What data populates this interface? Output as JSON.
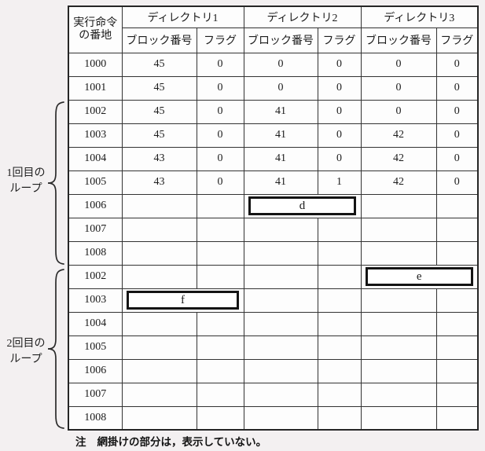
{
  "colors": {
    "paper": "#f3f0f1",
    "shaded_cell": "#d8dcd6",
    "grid_line": "#333333"
  },
  "table": {
    "header": {
      "addr_line1": "実行命令",
      "addr_line2": "の番地",
      "dirs": [
        "ディレクトリ1",
        "ディレクトリ2",
        "ディレクトリ3"
      ],
      "block_label": "ブロック番号",
      "flag_label": "フラグ"
    },
    "rows": [
      {
        "addr": "1000",
        "cells": [
          {
            "t": "v",
            "v": "45"
          },
          {
            "t": "v",
            "v": "0"
          },
          {
            "t": "v",
            "v": "0"
          },
          {
            "t": "v",
            "v": "0"
          },
          {
            "t": "v",
            "v": "0"
          },
          {
            "t": "v",
            "v": "0"
          }
        ]
      },
      {
        "addr": "1001",
        "cells": [
          {
            "t": "v",
            "v": "45"
          },
          {
            "t": "v",
            "v": "0"
          },
          {
            "t": "v",
            "v": "0"
          },
          {
            "t": "v",
            "v": "0"
          },
          {
            "t": "v",
            "v": "0"
          },
          {
            "t": "v",
            "v": "0"
          }
        ]
      },
      {
        "addr": "1002",
        "cells": [
          {
            "t": "v",
            "v": "45"
          },
          {
            "t": "v",
            "v": "0"
          },
          {
            "t": "v",
            "v": "41"
          },
          {
            "t": "v",
            "v": "0"
          },
          {
            "t": "v",
            "v": "0"
          },
          {
            "t": "v",
            "v": "0"
          }
        ]
      },
      {
        "addr": "1003",
        "cells": [
          {
            "t": "v",
            "v": "45"
          },
          {
            "t": "v",
            "v": "0"
          },
          {
            "t": "v",
            "v": "41"
          },
          {
            "t": "v",
            "v": "0"
          },
          {
            "t": "v",
            "v": "42"
          },
          {
            "t": "v",
            "v": "0"
          }
        ]
      },
      {
        "addr": "1004",
        "cells": [
          {
            "t": "v",
            "v": "43"
          },
          {
            "t": "v",
            "v": "0"
          },
          {
            "t": "v",
            "v": "41"
          },
          {
            "t": "v",
            "v": "0"
          },
          {
            "t": "v",
            "v": "42"
          },
          {
            "t": "v",
            "v": "0"
          }
        ]
      },
      {
        "addr": "1005",
        "cells": [
          {
            "t": "v",
            "v": "43"
          },
          {
            "t": "v",
            "v": "0"
          },
          {
            "t": "v",
            "v": "41"
          },
          {
            "t": "v",
            "v": "1"
          },
          {
            "t": "v",
            "v": "42"
          },
          {
            "t": "v",
            "v": "0"
          }
        ]
      },
      {
        "addr": "1006",
        "cells": [
          {
            "t": "s"
          },
          {
            "t": "s"
          },
          {
            "t": "b",
            "label": "d"
          },
          {
            "t": "s"
          },
          {
            "t": "s"
          }
        ]
      },
      {
        "addr": "1007",
        "cells": [
          {
            "t": "s"
          },
          {
            "t": "s"
          },
          {
            "t": "s"
          },
          {
            "t": "s"
          },
          {
            "t": "s"
          },
          {
            "t": "s"
          }
        ]
      },
      {
        "addr": "1008",
        "cells": [
          {
            "t": "s"
          },
          {
            "t": "s"
          },
          {
            "t": "s"
          },
          {
            "t": "s"
          },
          {
            "t": "s"
          },
          {
            "t": "s"
          }
        ]
      },
      {
        "addr": "1002",
        "cells": [
          {
            "t": "s"
          },
          {
            "t": "s"
          },
          {
            "t": "s"
          },
          {
            "t": "s"
          },
          {
            "t": "b",
            "label": "e"
          }
        ]
      },
      {
        "addr": "1003",
        "cells": [
          {
            "t": "b",
            "label": "f"
          },
          {
            "t": "s"
          },
          {
            "t": "s"
          },
          {
            "t": "s"
          },
          {
            "t": "s"
          }
        ]
      },
      {
        "addr": "1004",
        "cells": [
          {
            "t": "s"
          },
          {
            "t": "s"
          },
          {
            "t": "s"
          },
          {
            "t": "s"
          },
          {
            "t": "s"
          },
          {
            "t": "s"
          }
        ]
      },
      {
        "addr": "1005",
        "cells": [
          {
            "t": "s"
          },
          {
            "t": "s"
          },
          {
            "t": "s"
          },
          {
            "t": "s"
          },
          {
            "t": "s"
          },
          {
            "t": "s"
          }
        ]
      },
      {
        "addr": "1006",
        "cells": [
          {
            "t": "s"
          },
          {
            "t": "s"
          },
          {
            "t": "s"
          },
          {
            "t": "s"
          },
          {
            "t": "s"
          },
          {
            "t": "s"
          }
        ]
      },
      {
        "addr": "1007",
        "cells": [
          {
            "t": "s"
          },
          {
            "t": "s"
          },
          {
            "t": "s"
          },
          {
            "t": "s"
          },
          {
            "t": "s"
          },
          {
            "t": "s"
          }
        ]
      },
      {
        "addr": "1008",
        "cells": [
          {
            "t": "s"
          },
          {
            "t": "s"
          },
          {
            "t": "s"
          },
          {
            "t": "s"
          },
          {
            "t": "s"
          },
          {
            "t": "s"
          }
        ]
      }
    ]
  },
  "loops": [
    {
      "line1": "1回目の",
      "line2": "ループ"
    },
    {
      "line1": "2回目の",
      "line2": "ループ"
    }
  ],
  "note": {
    "prefix": "注",
    "text": "網掛けの部分は，表示していない。"
  }
}
